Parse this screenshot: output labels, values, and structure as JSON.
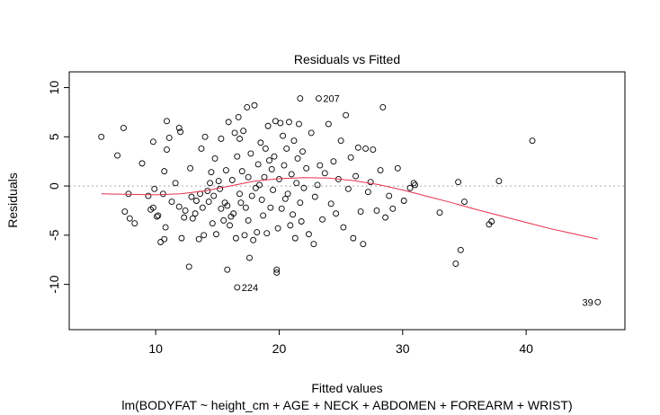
{
  "chart_data": {
    "type": "scatter",
    "title": "Residuals vs Fitted",
    "xlabel": "Fitted values",
    "ylabel": "Residuals",
    "subtitle": "lm(BODYFAT ~ height_cm + AGE + NECK + ABDOMEN + FOREARM + WRIST)",
    "xlim": [
      3.0,
      48.0
    ],
    "ylim": [
      -14.6,
      11.6
    ],
    "x_ticks": [
      10,
      20,
      30,
      40
    ],
    "y_ticks": [
      -10,
      -5,
      0,
      5,
      10
    ],
    "reference_line": {
      "y": 0,
      "style": "dotted",
      "color": "#aaaaaa"
    },
    "point_color": "#000000",
    "smoother_color": "#e8304a",
    "points": [
      [
        5.6,
        5.0
      ],
      [
        6.9,
        3.1
      ],
      [
        7.5,
        -2.6
      ],
      [
        7.9,
        -3.3
      ],
      [
        8.3,
        -3.8
      ],
      [
        7.8,
        -0.8
      ],
      [
        7.4,
        5.9
      ],
      [
        8.9,
        2.3
      ],
      [
        9.4,
        -1.0
      ],
      [
        9.6,
        -2.4
      ],
      [
        9.8,
        -2.2
      ],
      [
        9.9,
        -0.3
      ],
      [
        9.8,
        4.5
      ],
      [
        10.1,
        -3.1
      ],
      [
        10.2,
        -3.0
      ],
      [
        10.4,
        -5.7
      ],
      [
        10.6,
        -0.8
      ],
      [
        10.7,
        1.5
      ],
      [
        10.7,
        -5.4
      ],
      [
        10.8,
        -4.2
      ],
      [
        10.9,
        6.6
      ],
      [
        10.9,
        3.7
      ],
      [
        11.1,
        4.9
      ],
      [
        11.3,
        -1.6
      ],
      [
        11.6,
        0.3
      ],
      [
        11.9,
        -2.1
      ],
      [
        11.9,
        5.9
      ],
      [
        12.0,
        5.5
      ],
      [
        12.1,
        -5.3
      ],
      [
        12.3,
        -3.2
      ],
      [
        12.4,
        -2.5
      ],
      [
        12.7,
        -8.2
      ],
      [
        12.8,
        1.8
      ],
      [
        12.9,
        -1.1
      ],
      [
        13.0,
        -3.3
      ],
      [
        13.2,
        -2.8
      ],
      [
        13.3,
        -1.5
      ],
      [
        13.5,
        -5.4
      ],
      [
        13.6,
        -0.8
      ],
      [
        13.7,
        3.8
      ],
      [
        13.8,
        -2.2
      ],
      [
        13.9,
        -5.0
      ],
      [
        14.0,
        5.0
      ],
      [
        14.2,
        -0.5
      ],
      [
        14.3,
        -1.6
      ],
      [
        14.4,
        0.3
      ],
      [
        14.5,
        1.4
      ],
      [
        14.6,
        -3.8
      ],
      [
        14.7,
        -1.0
      ],
      [
        14.8,
        2.8
      ],
      [
        14.9,
        -4.9
      ],
      [
        15.1,
        0.5
      ],
      [
        15.2,
        -0.3
      ],
      [
        15.3,
        4.8
      ],
      [
        15.3,
        -2.3
      ],
      [
        15.5,
        -3.5
      ],
      [
        15.6,
        -1.7
      ],
      [
        15.7,
        1.6
      ],
      [
        15.8,
        -8.5
      ],
      [
        15.8,
        -2.0
      ],
      [
        15.9,
        6.5
      ],
      [
        16.0,
        -4.0
      ],
      [
        16.1,
        -3.1
      ],
      [
        16.2,
        0.6
      ],
      [
        16.3,
        -2.8
      ],
      [
        16.4,
        5.4
      ],
      [
        16.5,
        -5.3
      ],
      [
        16.6,
        -10.3
      ],
      [
        16.6,
        3.0
      ],
      [
        16.7,
        7.0
      ],
      [
        16.8,
        -0.8
      ],
      [
        16.8,
        4.8
      ],
      [
        16.9,
        -1.7
      ],
      [
        17.0,
        1.5
      ],
      [
        17.1,
        5.6
      ],
      [
        17.2,
        -5.0
      ],
      [
        17.3,
        -2.2
      ],
      [
        17.4,
        8.0
      ],
      [
        17.5,
        -3.5
      ],
      [
        17.5,
        0.9
      ],
      [
        17.6,
        -7.3
      ],
      [
        17.7,
        3.3
      ],
      [
        17.8,
        -1.0
      ],
      [
        17.9,
        -5.5
      ],
      [
        18.0,
        8.2
      ],
      [
        18.1,
        -0.2
      ],
      [
        18.2,
        -4.7
      ],
      [
        18.3,
        2.2
      ],
      [
        18.4,
        0.1
      ],
      [
        18.5,
        4.4
      ],
      [
        18.6,
        -1.4
      ],
      [
        18.7,
        -3.0
      ],
      [
        18.8,
        0.9
      ],
      [
        18.9,
        3.8
      ],
      [
        19.0,
        -4.8
      ],
      [
        19.1,
        6.1
      ],
      [
        19.2,
        2.6
      ],
      [
        19.3,
        -2.2
      ],
      [
        19.4,
        1.7
      ],
      [
        19.5,
        -0.4
      ],
      [
        19.6,
        3.0
      ],
      [
        19.7,
        6.6
      ],
      [
        19.8,
        -8.5
      ],
      [
        19.8,
        -8.8
      ],
      [
        19.9,
        -4.3
      ],
      [
        20.0,
        0.7
      ],
      [
        20.1,
        6.4
      ],
      [
        20.2,
        -2.3
      ],
      [
        20.3,
        5.1
      ],
      [
        20.4,
        2.1
      ],
      [
        20.5,
        -1.3
      ],
      [
        20.6,
        3.8
      ],
      [
        20.7,
        -0.8
      ],
      [
        20.8,
        6.5
      ],
      [
        20.9,
        -4.0
      ],
      [
        21.0,
        1.2
      ],
      [
        21.1,
        -2.9
      ],
      [
        21.2,
        4.6
      ],
      [
        21.3,
        -5.3
      ],
      [
        21.4,
        0.3
      ],
      [
        21.5,
        2.8
      ],
      [
        21.6,
        6.3
      ],
      [
        21.7,
        -1.7
      ],
      [
        21.7,
        8.9
      ],
      [
        21.8,
        -3.6
      ],
      [
        21.9,
        3.5
      ],
      [
        22.0,
        -0.2
      ],
      [
        22.2,
        1.8
      ],
      [
        22.4,
        -4.9
      ],
      [
        22.6,
        5.4
      ],
      [
        22.8,
        -5.9
      ],
      [
        22.9,
        -1.1
      ],
      [
        23.1,
        0.1
      ],
      [
        23.2,
        8.9
      ],
      [
        23.3,
        2.1
      ],
      [
        23.5,
        -3.4
      ],
      [
        23.7,
        1.3
      ],
      [
        24.0,
        6.3
      ],
      [
        24.2,
        -1.8
      ],
      [
        24.4,
        2.5
      ],
      [
        24.6,
        -2.8
      ],
      [
        24.8,
        0.7
      ],
      [
        25.0,
        4.6
      ],
      [
        25.2,
        -4.2
      ],
      [
        25.4,
        7.2
      ],
      [
        25.6,
        -0.3
      ],
      [
        25.8,
        2.9
      ],
      [
        26.0,
        -5.3
      ],
      [
        26.2,
        1.0
      ],
      [
        26.4,
        3.9
      ],
      [
        26.6,
        -2.6
      ],
      [
        26.8,
        -5.9
      ],
      [
        27.0,
        3.8
      ],
      [
        27.2,
        -0.6
      ],
      [
        27.4,
        0.4
      ],
      [
        27.6,
        3.7
      ],
      [
        27.9,
        -2.5
      ],
      [
        28.2,
        1.6
      ],
      [
        28.4,
        8.0
      ],
      [
        28.6,
        -3.2
      ],
      [
        28.9,
        -1.0
      ],
      [
        29.2,
        -2.3
      ],
      [
        29.6,
        1.8
      ],
      [
        30.1,
        -1.5
      ],
      [
        30.6,
        -0.2
      ],
      [
        30.9,
        0.3
      ],
      [
        31.0,
        0.1
      ],
      [
        33.0,
        -2.7
      ],
      [
        34.3,
        -7.9
      ],
      [
        34.5,
        0.4
      ],
      [
        34.7,
        -6.5
      ],
      [
        35.0,
        -1.6
      ],
      [
        37.0,
        -3.9
      ],
      [
        37.2,
        -3.6
      ],
      [
        37.8,
        0.5
      ],
      [
        40.5,
        4.6
      ],
      [
        45.8,
        -11.8
      ]
    ],
    "smoother": [
      [
        5.6,
        -0.8
      ],
      [
        8,
        -0.85
      ],
      [
        10,
        -0.9
      ],
      [
        12,
        -0.8
      ],
      [
        14,
        -0.5
      ],
      [
        16,
        0.0
      ],
      [
        18,
        0.5
      ],
      [
        20,
        0.75
      ],
      [
        22,
        0.85
      ],
      [
        24,
        0.8
      ],
      [
        26,
        0.55
      ],
      [
        28,
        0.15
      ],
      [
        30,
        -0.4
      ],
      [
        32,
        -1.05
      ],
      [
        34,
        -1.7
      ],
      [
        36,
        -2.4
      ],
      [
        38,
        -3.05
      ],
      [
        40,
        -3.7
      ],
      [
        42,
        -4.35
      ],
      [
        44,
        -4.9
      ],
      [
        45.8,
        -5.4
      ]
    ],
    "annotations": [
      {
        "text": "207",
        "x": 23.2,
        "y": 8.9,
        "side": "right"
      },
      {
        "text": "224",
        "x": 16.6,
        "y": -10.3,
        "side": "right"
      },
      {
        "text": "39",
        "x": 45.8,
        "y": -11.8,
        "side": "left"
      }
    ]
  }
}
